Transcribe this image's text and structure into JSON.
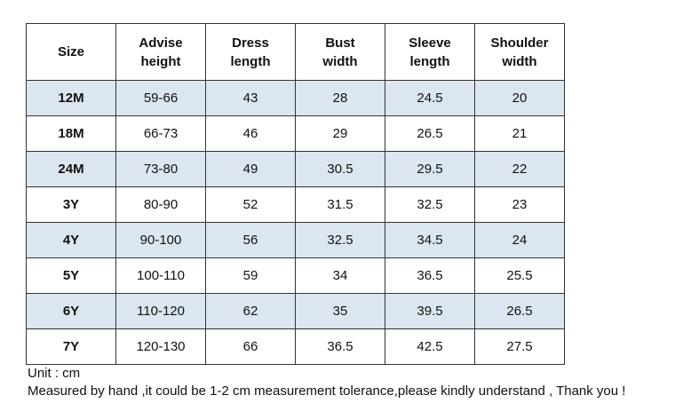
{
  "table": {
    "header": [
      [
        "Size"
      ],
      [
        "Advise",
        "height"
      ],
      [
        "Dress",
        "length"
      ],
      [
        "Bust",
        "width"
      ],
      [
        "Sleeve",
        "length"
      ],
      [
        "Shoulder",
        "width"
      ]
    ],
    "rows": [
      [
        "12M",
        "59-66",
        "43",
        "28",
        "24.5",
        "20"
      ],
      [
        "18M",
        "66-73",
        "46",
        "29",
        "26.5",
        "21"
      ],
      [
        "24M",
        "73-80",
        "49",
        "30.5",
        "29.5",
        "22"
      ],
      [
        "3Y",
        "80-90",
        "52",
        "31.5",
        "32.5",
        "23"
      ],
      [
        "4Y",
        "90-100",
        "56",
        "32.5",
        "34.5",
        "24"
      ],
      [
        "5Y",
        "100-110",
        "59",
        "34",
        "36.5",
        "25.5"
      ],
      [
        "6Y",
        "110-120",
        "62",
        "35",
        "39.5",
        "26.5"
      ],
      [
        "7Y",
        "120-130",
        "66",
        "36.5",
        "42.5",
        "27.5"
      ]
    ]
  },
  "notes": {
    "unit": "Unit : cm",
    "measurement": "Measured by hand ,it could be 1-2 cm measurement tolerance,please kindly understand , Thank you !"
  }
}
